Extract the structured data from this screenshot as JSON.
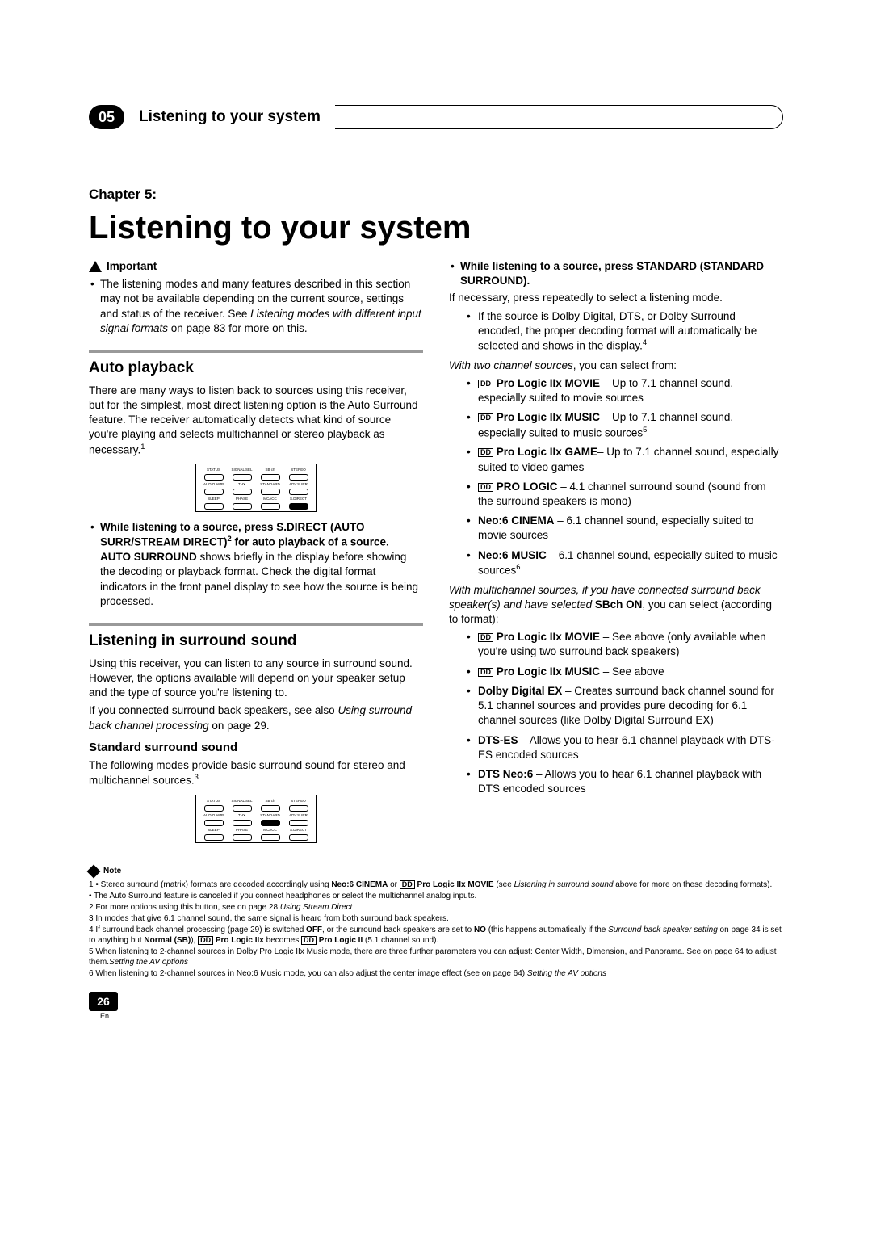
{
  "header": {
    "chapter_num": "05",
    "chapter_title": "Listening to your system"
  },
  "chapter_label": "Chapter 5:",
  "main_title": "Listening to your system",
  "important": {
    "label": "Important",
    "text_1": "The listening modes and many features described in this section may not be available depending on the current source, settings and status of the receiver. See ",
    "text_1_italic": "Listening modes with different input signal formats",
    "text_1_end": " on page 83 for more on this."
  },
  "auto_playback": {
    "title": "Auto playback",
    "para": "There are many ways to listen back to sources using this receiver, but for the simplest, most direct listening option is the Auto Surround feature. The receiver automatically detects what kind of source you're playing and selects multichannel or stereo playback as necessary.",
    "sup": "1",
    "bullet_bold_a": "While listening to a source, press S.DIRECT (AUTO SURR/STREAM DIRECT)",
    "bullet_sup": "2",
    "bullet_bold_b": " for auto playback of a source.",
    "bullet_rest_bold": "AUTO SURROUND",
    "bullet_rest": " shows briefly in the display before showing the decoding or playback format. Check the digital format indicators in the front panel display to see how the source is being processed."
  },
  "surround": {
    "title": "Listening in surround sound",
    "p1": "Using this receiver, you can listen to any source in surround sound. However, the options available will depend on your speaker setup and the type of source you're listening to.",
    "p2_a": "If you connected surround back speakers, see also ",
    "p2_i": "Using surround back channel processing",
    "p2_b": " on page 29.",
    "sub_title": "Standard surround sound",
    "p3": "The following modes provide basic surround sound for stereo and multichannel sources.",
    "sup3": "3"
  },
  "right_col": {
    "bullet1_bold": "While listening to a source, press STANDARD (STANDARD SURROUND).",
    "p_after": "If necessary, press repeatedly to select a listening mode.",
    "nested1": "If the source is Dolby Digital, DTS, or Dolby Surround encoded, the proper decoding format will automatically be selected and shows in the display.",
    "nested1_sup": "4",
    "two_ch_intro_i": "With two channel sources",
    "two_ch_intro": ", you can select from:",
    "modes2ch": [
      {
        "b": " Pro Logic IIx MOVIE",
        "t": " – Up to 7.1 channel sound, especially suited to movie sources",
        "icon": true
      },
      {
        "b": " Pro Logic IIx MUSIC",
        "t": " – Up to 7.1 channel sound, especially suited to music sources",
        "sup": "5",
        "icon": true
      },
      {
        "b": " Pro Logic IIx GAME",
        "t": "– Up to 7.1 channel sound, especially suited to video games",
        "icon": true
      },
      {
        "b": " PRO LOGIC",
        "t": " – 4.1 channel surround sound (sound from the surround speakers is mono)",
        "icon": true
      },
      {
        "b": "Neo:6 CINEMA",
        "t": " – 6.1 channel sound, especially suited to movie sources"
      },
      {
        "b": "Neo:6 MUSIC",
        "t": " – 6.1 channel sound, especially suited to music sources",
        "sup": "6"
      }
    ],
    "multi_intro_i": "With multichannel sources, if you have connected surround back speaker(s) and have selected ",
    "multi_intro_b": "SBch ON",
    "multi_intro_end": ", you can select (according to format):",
    "modesMulti": [
      {
        "b": " Pro Logic IIx MOVIE",
        "t": " – See above (only available when you're using two surround back speakers)",
        "icon": true
      },
      {
        "b": " Pro Logic IIx MUSIC",
        "t": " – See above",
        "icon": true
      },
      {
        "b": "Dolby Digital EX",
        "t": " – Creates surround back channel sound for 5.1 channel sources and provides pure decoding for 6.1 channel sources (like Dolby Digital Surround EX)"
      },
      {
        "b": "DTS-ES",
        "t": " – Allows you to hear 6.1 channel playback with DTS-ES encoded sources"
      },
      {
        "b": "DTS Neo:6",
        "t": " – Allows you to hear 6.1 channel playback with DTS encoded sources"
      }
    ]
  },
  "remote": {
    "r1_labels": [
      "STATUS",
      "SIGNAL SEL",
      "SB ch",
      "STEREO"
    ],
    "r2_labels": [
      "AUDIO AMP",
      "THX",
      "STANDARD",
      "ADV.SURR"
    ],
    "r3_labels": [
      "SLEEP",
      "PHASE",
      "MCACC",
      "S.DIRECT"
    ]
  },
  "note": {
    "label": "Note",
    "lines": [
      {
        "n": "1",
        "t": " • Stereo surround (matrix) formats are decoded accordingly using ",
        "b1": "Neo:6 CINEMA",
        "m": " or ",
        "icon": true,
        "b2": " Pro Logic IIx MOVIE",
        "e": " (see ",
        "i": "Listening in surround sound",
        "e2": " above for more on these decoding formats)."
      },
      {
        "t": "   • The Auto Surround feature is canceled if you connect headphones or select the multichannel analog inputs."
      },
      {
        "n": "2",
        "t": " For more options using this button, see ",
        "i": "Using Stream Direct",
        "e": " on page 28."
      },
      {
        "n": "3",
        "t": " In modes that give 6.1 channel sound, the same signal is heard from both surround back speakers."
      },
      {
        "n": "4",
        "t": " If surround back channel processing (page 29) is switched ",
        "b1": "OFF",
        "m": ", or the surround back speakers are set to ",
        "b2": "NO",
        "e": " (this happens automatically if the ",
        "i": "Surround back speaker setting",
        "e2": " on page 34 is set to anything but ",
        "b3": "Normal (SB)",
        "m2": "), ",
        "icon2": true,
        "b4": " Pro Logic IIx",
        "m3": " becomes ",
        "icon3": true,
        "b5": " Pro Logic II",
        "e3": " (5.1 channel sound)."
      },
      {
        "n": "5",
        "t": " When listening to 2-channel sources in Dolby Pro Logic IIx Music mode, there are three further parameters you can adjust: Center Width, Dimension, and Panorama. See ",
        "i": "Setting the AV options",
        "e": " on page 64 to adjust them."
      },
      {
        "n": "6",
        "t": " When listening to 2-channel sources in Neo:6 Music mode, you can also adjust the center image effect (see ",
        "i": "Setting the AV options",
        "e": " on page 64)."
      }
    ]
  },
  "page": {
    "num": "26",
    "lang": "En"
  }
}
